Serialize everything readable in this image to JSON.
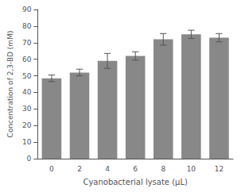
{
  "chart_data": {
    "type": "bar",
    "xlabel": "Cyanobacterial lysate (μL)",
    "ylabel": "Concentration of 2,3-BD (mM)",
    "categories": [
      "0",
      "2",
      "4",
      "6",
      "8",
      "10",
      "12"
    ],
    "values": [
      48.5,
      52.0,
      59.0,
      62.0,
      72.0,
      75.0,
      73.0
    ],
    "errors": [
      2.0,
      2.0,
      4.5,
      2.5,
      3.5,
      2.5,
      2.5
    ],
    "color": "#888888",
    "ylim": [
      0,
      90
    ],
    "yticks": [
      0,
      10,
      20,
      30,
      40,
      50,
      60,
      70,
      80,
      90
    ],
    "grid": false
  }
}
